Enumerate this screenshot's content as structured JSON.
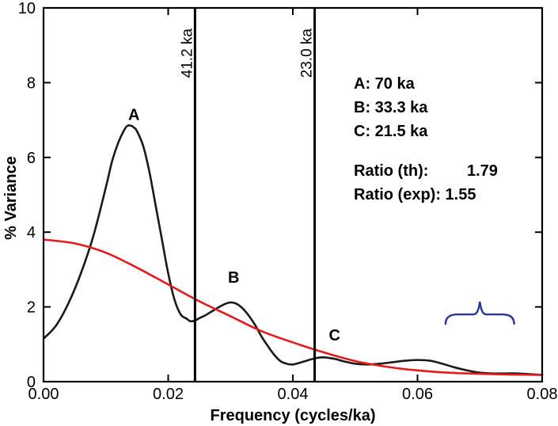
{
  "chart_data": {
    "type": "line",
    "title": "",
    "xlabel": "Frequency (cycles/ka)",
    "ylabel": "% Variance",
    "xlim": [
      0,
      0.08
    ],
    "ylim": [
      0,
      10
    ],
    "x_ticks": [
      0,
      0.02,
      0.04,
      0.06,
      0.08
    ],
    "x_tick_labels": [
      "0.00",
      "0.02",
      "0.04",
      "0.06",
      "0.08"
    ],
    "y_ticks": [
      0,
      2,
      4,
      6,
      8,
      10
    ],
    "y_tick_labels": [
      "0",
      "2",
      "4",
      "6",
      "8",
      "10"
    ],
    "series": [
      {
        "name": "spectrum",
        "color": "#1a1a1a",
        "x": [
          0,
          0.002,
          0.004,
          0.006,
          0.008,
          0.01,
          0.011,
          0.012,
          0.013,
          0.0135,
          0.014,
          0.0145,
          0.015,
          0.016,
          0.017,
          0.018,
          0.019,
          0.02,
          0.021,
          0.022,
          0.023,
          0.0235,
          0.024,
          0.0245,
          0.025,
          0.026,
          0.027,
          0.028,
          0.029,
          0.03,
          0.031,
          0.032,
          0.033,
          0.034,
          0.035,
          0.036,
          0.037,
          0.038,
          0.039,
          0.04,
          0.041,
          0.042,
          0.043,
          0.044,
          0.045,
          0.046,
          0.047,
          0.048,
          0.05,
          0.052,
          0.054,
          0.056,
          0.058,
          0.06,
          0.062,
          0.064,
          0.066,
          0.068,
          0.07,
          0.072,
          0.074,
          0.076,
          0.078,
          0.08
        ],
        "y": [
          1.15,
          1.5,
          2.1,
          2.9,
          3.9,
          5.2,
          5.9,
          6.4,
          6.75,
          6.85,
          6.85,
          6.8,
          6.7,
          6.3,
          5.6,
          4.7,
          3.8,
          2.9,
          2.2,
          1.8,
          1.68,
          1.62,
          1.62,
          1.65,
          1.7,
          1.78,
          1.88,
          1.98,
          2.07,
          2.12,
          2.08,
          1.95,
          1.75,
          1.5,
          1.2,
          0.95,
          0.72,
          0.55,
          0.48,
          0.46,
          0.5,
          0.55,
          0.6,
          0.64,
          0.65,
          0.63,
          0.6,
          0.55,
          0.48,
          0.46,
          0.48,
          0.52,
          0.56,
          0.58,
          0.56,
          0.48,
          0.38,
          0.3,
          0.24,
          0.22,
          0.22,
          0.22,
          0.2,
          0.18
        ]
      },
      {
        "name": "red-noise",
        "color": "#e41a1c",
        "x": [
          0,
          0.005,
          0.01,
          0.015,
          0.02,
          0.025,
          0.03,
          0.035,
          0.04,
          0.045,
          0.05,
          0.055,
          0.06,
          0.065,
          0.07,
          0.075,
          0.08
        ],
        "y": [
          3.8,
          3.7,
          3.45,
          3.05,
          2.6,
          2.15,
          1.75,
          1.35,
          1.05,
          0.78,
          0.55,
          0.4,
          0.3,
          0.24,
          0.21,
          0.19,
          0.18
        ]
      }
    ],
    "vertical_lines": [
      {
        "x": 0.0243,
        "label": "41.2 ka"
      },
      {
        "x": 0.0435,
        "label": "23.0 ka"
      }
    ],
    "peak_labels": [
      {
        "text": "A",
        "x": 0.0145,
        "y": 7.0
      },
      {
        "text": "B",
        "x": 0.0305,
        "y": 2.65
      },
      {
        "text": "C",
        "x": 0.0467,
        "y": 1.1
      }
    ],
    "info_lines": [
      "A: 70 ka",
      "B: 33.3 ka",
      "C: 21.5 ka",
      "Ratio (th):",
      "Ratio (exp): 1.55"
    ],
    "info_values": [
      "1.79"
    ],
    "brace": {
      "x_start": 0.0645,
      "x_end": 0.0755,
      "y": 1.8,
      "color": "#283593"
    }
  }
}
